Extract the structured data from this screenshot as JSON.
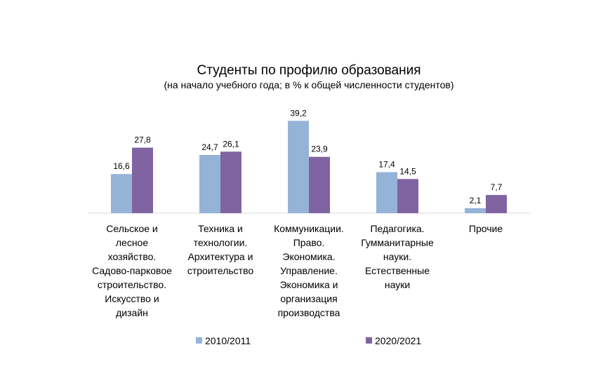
{
  "chart_data": {
    "type": "bar",
    "title": "Студенты по профилю образования",
    "subtitle": "(на начало учебного года; в % к общей численности студентов)",
    "categories": [
      [
        "Сельское и",
        "лесное",
        "хозяйство.",
        "Садово-парковое",
        "строительство.",
        "Искусство и",
        "дизайн"
      ],
      [
        "Техника и",
        "технологии.",
        "Архитектура и",
        "строительство"
      ],
      [
        "Коммуникации.",
        "Право.",
        "Экономика.",
        "Управление.",
        "Экономика и",
        "организация",
        "производства"
      ],
      [
        "Педагогика.",
        "Гумманитарные",
        "науки.",
        "Естественные",
        "науки"
      ],
      [
        "Прочие"
      ]
    ],
    "series": [
      {
        "name": "2010/2011",
        "color": "#95B3D7",
        "values": [
          16.6,
          24.7,
          39.2,
          17.4,
          2.1
        ],
        "labels": [
          "16,6",
          "24,7",
          "39,2",
          "17,4",
          "2,1"
        ]
      },
      {
        "name": "2020/2021",
        "color": "#8064A2",
        "values": [
          27.8,
          26.1,
          23.9,
          14.5,
          7.7
        ],
        "labels": [
          "27,8",
          "26,1",
          "23,9",
          "14,5",
          "7,7"
        ]
      }
    ],
    "ylim": [
      0,
      40
    ],
    "grid": false,
    "legend_position": "bottom"
  }
}
